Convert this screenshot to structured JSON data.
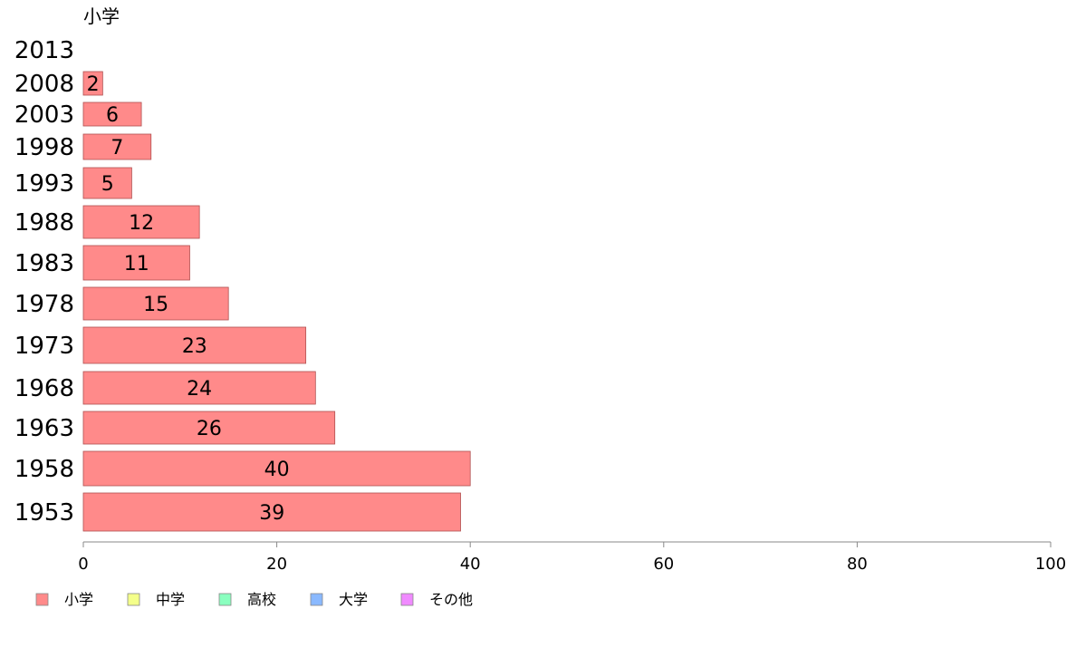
{
  "chart_data": {
    "type": "bar",
    "orientation": "horizontal",
    "title": "小学",
    "categories": [
      "2013",
      "2008",
      "2003",
      "1998",
      "1993",
      "1988",
      "1983",
      "1978",
      "1973",
      "1968",
      "1963",
      "1958",
      "1953"
    ],
    "series": [
      {
        "name": "小学",
        "color": "#ff8a8a",
        "values": [
          0,
          2,
          6,
          7,
          5,
          12,
          11,
          15,
          23,
          24,
          26,
          40,
          39
        ],
        "labels": [
          "",
          "2",
          "6",
          "7",
          "5",
          "12",
          "11",
          "15",
          "23",
          "24",
          "26",
          "40",
          "39"
        ]
      }
    ],
    "xlim": [
      0,
      100
    ],
    "xticks": [
      "0",
      "20",
      "40",
      "60",
      "80",
      "100"
    ],
    "grid": false,
    "legend": {
      "position": "bottom-left",
      "items": [
        {
          "label": "小学",
          "color": "#ff8a8a"
        },
        {
          "label": "中学",
          "color": "#f4ff8a"
        },
        {
          "label": "高校",
          "color": "#8affbf"
        },
        {
          "label": "大学",
          "color": "#8ab9ff"
        },
        {
          "label": "その他",
          "color": "#f08aff"
        }
      ]
    }
  }
}
